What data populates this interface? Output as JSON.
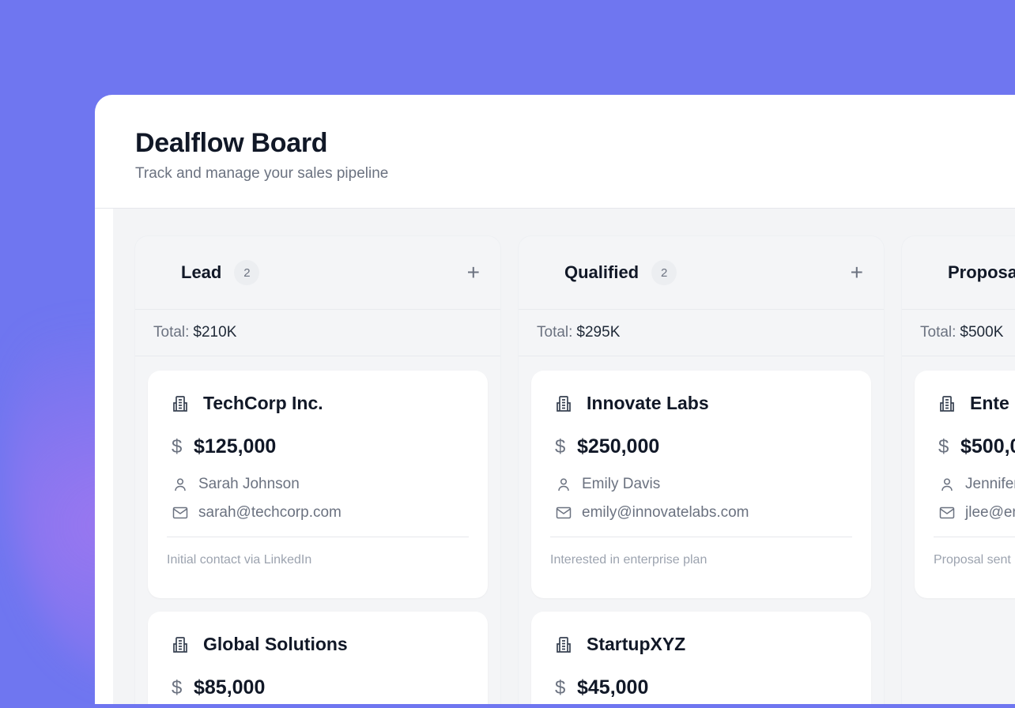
{
  "header": {
    "title": "Dealflow Board",
    "subtitle": "Track and manage your sales pipeline"
  },
  "total_label": "Total:",
  "columns": [
    {
      "name": "Lead",
      "count": "2",
      "total": "$210K",
      "cards": [
        {
          "company": "TechCorp Inc.",
          "amount": "$125,000",
          "contact": "Sarah Johnson",
          "email": "sarah@techcorp.com",
          "note": "Initial contact via LinkedIn"
        },
        {
          "company": "Global Solutions",
          "amount": "$85,000"
        }
      ]
    },
    {
      "name": "Qualified",
      "count": "2",
      "total": "$295K",
      "cards": [
        {
          "company": "Innovate Labs",
          "amount": "$250,000",
          "contact": "Emily Davis",
          "email": "emily@innovatelabs.com",
          "note": "Interested in enterprise plan"
        },
        {
          "company": "StartupXYZ",
          "amount": "$45,000"
        }
      ]
    },
    {
      "name": "Proposa",
      "total": "$500K",
      "cards": [
        {
          "company": "Ente",
          "amount": "$500,0",
          "contact": "Jennifer",
          "email": "jlee@en",
          "note": "Proposal sent"
        }
      ]
    }
  ],
  "icons": {
    "company": "building-icon",
    "amount": "dollar-icon",
    "contact": "user-icon",
    "email": "mail-icon",
    "add": "plus-icon"
  }
}
